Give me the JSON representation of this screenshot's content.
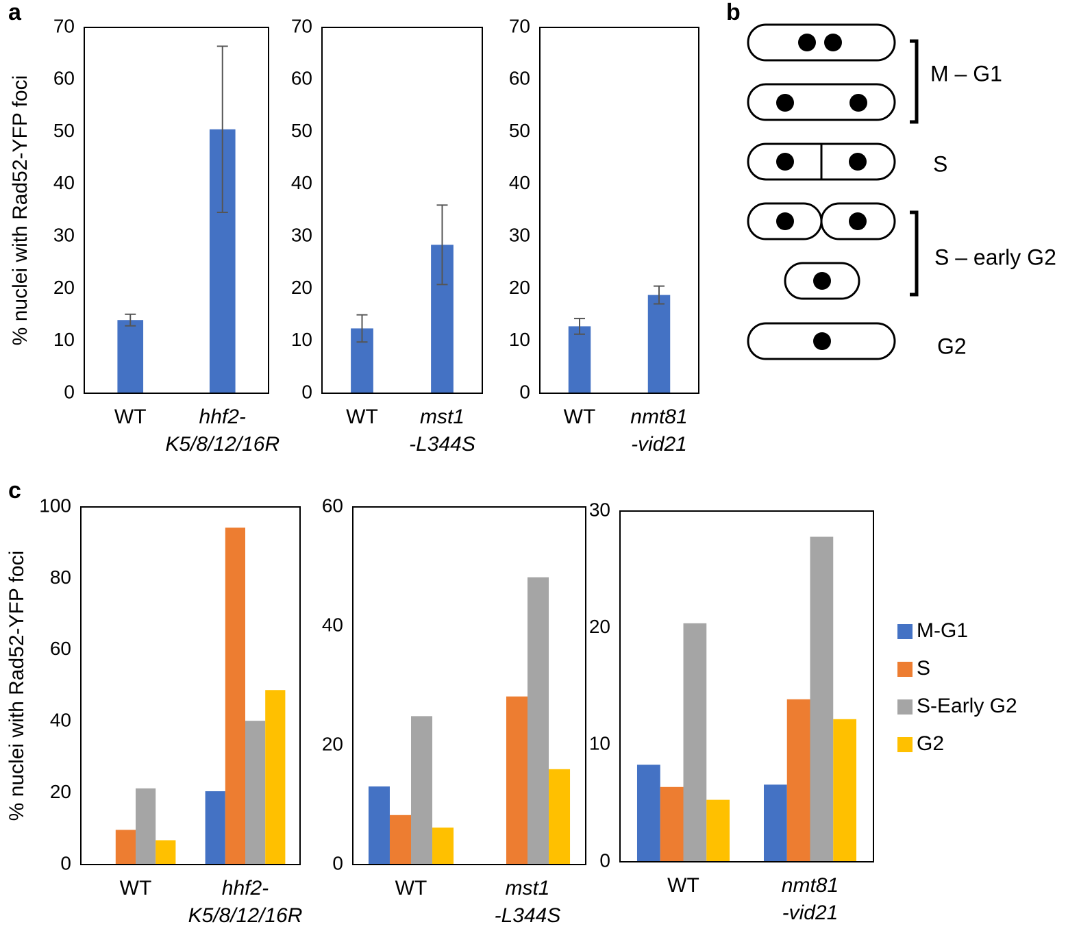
{
  "panel_labels": [
    "a",
    "b",
    "c"
  ],
  "diagram": {
    "stage_labels": [
      "M – G1",
      "S",
      "S – early G2",
      "G2"
    ]
  },
  "chart_data": [
    {
      "type": "bar",
      "ylabel": "% nuclei with Rad52-YFP foci",
      "categories": [
        "WT",
        "hhf2-\nK5/8/12/16R"
      ],
      "category_style": [
        "normal",
        "italic"
      ],
      "values": [
        14,
        50.5
      ],
      "errors": [
        1.1,
        15.9
      ],
      "color": "#4472c4",
      "ylim": [
        0,
        70
      ],
      "yticks": [
        0,
        10,
        20,
        30,
        40,
        50,
        60,
        70
      ]
    },
    {
      "type": "bar",
      "categories": [
        "WT",
        "mst1\n-L344S"
      ],
      "category_style": [
        "normal",
        "italic"
      ],
      "values": [
        12.4,
        28.4
      ],
      "errors": [
        2.6,
        7.6
      ],
      "color": "#4472c4",
      "ylim": [
        0,
        70
      ],
      "yticks": [
        0,
        10,
        20,
        30,
        40,
        50,
        60,
        70
      ]
    },
    {
      "type": "bar",
      "categories": [
        "WT",
        "nmt81\n-vid21"
      ],
      "category_style": [
        "normal",
        "italic"
      ],
      "values": [
        12.8,
        18.8
      ],
      "errors": [
        1.5,
        1.7
      ],
      "color": "#4472c4",
      "ylim": [
        0,
        70
      ],
      "yticks": [
        0,
        10,
        20,
        30,
        40,
        50,
        60,
        70
      ]
    },
    {
      "type": "grouped-bar",
      "ylabel": "% nuclei with Rad52-YFP foci",
      "categories": [
        "WT",
        "hhf2-\nK5/8/12/16R"
      ],
      "category_style": [
        "normal",
        "italic"
      ],
      "ylim": [
        0,
        100
      ],
      "yticks": [
        0,
        20,
        40,
        60,
        80,
        100
      ],
      "series": [
        {
          "color": "#4472c4",
          "values": [
            0,
            20.5
          ]
        },
        {
          "color": "#ed7d31",
          "values": [
            9.7,
            94.2
          ]
        },
        {
          "color": "#a5a5a5",
          "values": [
            21.3,
            40.2
          ]
        },
        {
          "color": "#ffc000",
          "values": [
            6.8,
            48.8
          ]
        }
      ]
    },
    {
      "type": "grouped-bar",
      "categories": [
        "WT",
        "mst1\n-L344S"
      ],
      "category_style": [
        "normal",
        "italic"
      ],
      "ylim": [
        0,
        60
      ],
      "yticks": [
        0,
        20,
        40,
        60
      ],
      "series": [
        {
          "color": "#4472c4",
          "values": [
            13.1,
            0
          ]
        },
        {
          "color": "#ed7d31",
          "values": [
            8.3,
            28.2
          ]
        },
        {
          "color": "#a5a5a5",
          "values": [
            24.9,
            48.2
          ]
        },
        {
          "color": "#ffc000",
          "values": [
            6.2,
            16.0
          ]
        }
      ]
    },
    {
      "type": "grouped-bar",
      "categories": [
        "WT",
        "nmt81\n-vid21"
      ],
      "category_style": [
        "normal",
        "italic"
      ],
      "ylim": [
        0,
        30
      ],
      "yticks": [
        0,
        10,
        20,
        30
      ],
      "legend": "right",
      "series": [
        {
          "name": "M-G1",
          "color": "#4472c4",
          "values": [
            8.3,
            6.6
          ]
        },
        {
          "name": "S",
          "color": "#ed7d31",
          "values": [
            6.4,
            13.9
          ]
        },
        {
          "name": "S-Early G2",
          "color": "#a5a5a5",
          "values": [
            20.4,
            27.8
          ]
        },
        {
          "name": "G2",
          "color": "#ffc000",
          "values": [
            5.3,
            12.2
          ]
        }
      ]
    }
  ]
}
